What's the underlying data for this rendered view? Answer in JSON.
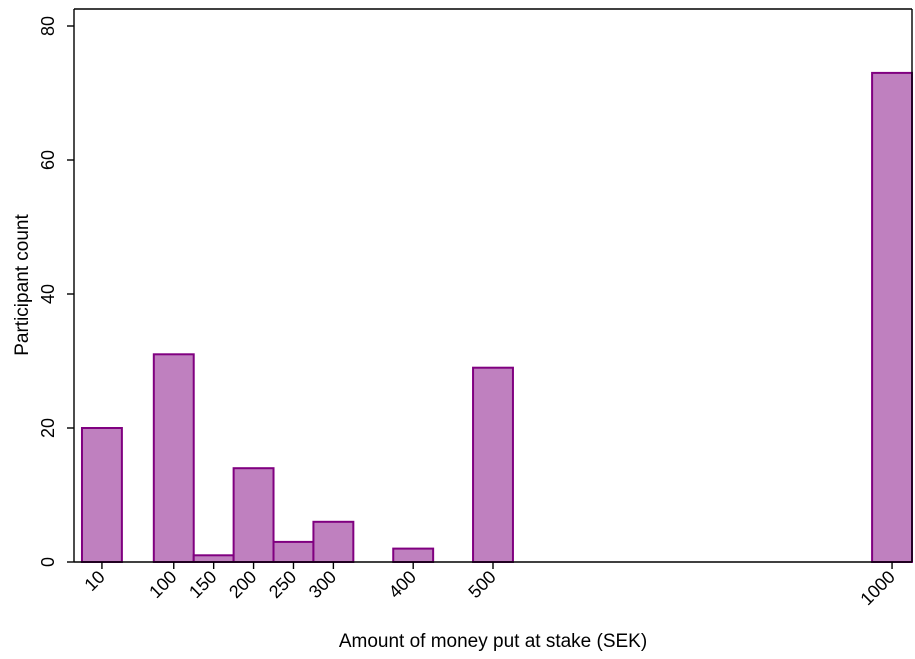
{
  "chart_data": {
    "type": "bar",
    "title": "",
    "xlabel": "Amount of money put at stake (SEK)",
    "ylabel": "Participant count",
    "bar_fill": "#bf80bf",
    "bar_stroke": "#800080",
    "ylim": [
      0,
      80
    ],
    "yticks": [
      0,
      20,
      40,
      60,
      80
    ],
    "xlim": [
      -25,
      1025
    ],
    "x_bin_width": 50,
    "x": [
      10,
      100,
      150,
      200,
      250,
      300,
      400,
      500,
      1000
    ],
    "values": [
      20,
      31,
      1,
      14,
      3,
      6,
      2,
      29,
      73
    ],
    "xticks": [
      10,
      100,
      150,
      200,
      250,
      300,
      400,
      500,
      1000
    ],
    "xtick_labels": [
      "10",
      "100",
      "150",
      "200",
      "250",
      "300",
      "400",
      "500",
      "1000"
    ],
    "grid": false
  }
}
